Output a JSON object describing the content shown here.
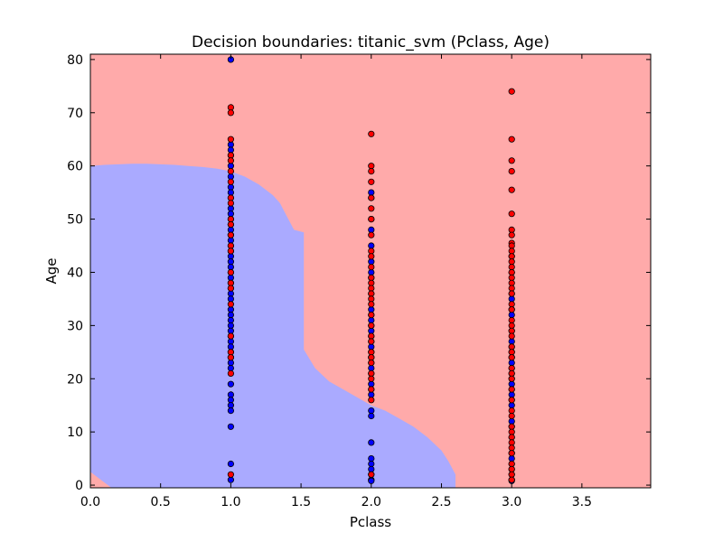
{
  "chart_data": {
    "type": "scatter",
    "title": "Decision boundaries: titanic_svm (Pclass, Age)",
    "xlabel": "Pclass",
    "ylabel": "Age",
    "xlim": [
      0.0,
      3.99
    ],
    "ylim": [
      -0.5,
      81
    ],
    "x_ticks": [
      0.0,
      0.5,
      1.0,
      1.5,
      2.0,
      2.5,
      3.0,
      3.5
    ],
    "x_tick_labels": [
      "0.0",
      "0.5",
      "1.0",
      "1.5",
      "2.0",
      "2.5",
      "3.0",
      "3.5"
    ],
    "y_ticks": [
      0,
      10,
      20,
      30,
      40,
      50,
      60,
      70,
      80
    ],
    "y_tick_labels": [
      "0",
      "10",
      "20",
      "30",
      "40",
      "50",
      "60",
      "70",
      "80"
    ],
    "grid": false,
    "legend": "none",
    "colors": {
      "region_blue": "#aaaaff",
      "region_red": "#ffaaaa",
      "point_blue": "#0000ff",
      "point_red": "#ff0000",
      "point_edge": "#000000"
    },
    "regions": {
      "blue_region_boundary": [
        [
          0.0,
          60.0
        ],
        [
          0.1,
          60.2
        ],
        [
          0.2,
          60.3
        ],
        [
          0.3,
          60.4
        ],
        [
          0.4,
          60.4
        ],
        [
          0.5,
          60.3
        ],
        [
          0.6,
          60.2
        ],
        [
          0.7,
          60.0
        ],
        [
          0.8,
          59.8
        ],
        [
          0.9,
          59.5
        ],
        [
          1.0,
          59.0
        ],
        [
          1.1,
          58.0
        ],
        [
          1.2,
          56.5
        ],
        [
          1.3,
          54.5
        ],
        [
          1.35,
          53.0
        ],
        [
          1.4,
          50.5
        ],
        [
          1.45,
          48.0
        ],
        [
          1.52,
          47.5
        ],
        [
          1.52,
          25.5
        ],
        [
          1.6,
          22.0
        ],
        [
          1.7,
          19.5
        ],
        [
          1.8,
          18.0
        ],
        [
          1.9,
          16.5
        ],
        [
          2.0,
          15.0
        ],
        [
          2.1,
          14.0
        ],
        [
          2.2,
          12.5
        ],
        [
          2.3,
          11.0
        ],
        [
          2.4,
          9.0
        ],
        [
          2.5,
          6.5
        ],
        [
          2.55,
          4.5
        ],
        [
          2.6,
          2.0
        ],
        [
          2.6,
          -0.5
        ]
      ],
      "red_corner_boundary": [
        [
          0.0,
          2.5
        ],
        [
          0.15,
          -0.5
        ]
      ]
    },
    "series": [
      {
        "color": "point_blue",
        "points": [
          [
            1,
            80
          ],
          [
            1,
            64
          ],
          [
            1,
            63
          ],
          [
            1,
            62
          ],
          [
            1,
            60
          ],
          [
            1,
            58
          ],
          [
            1,
            56
          ],
          [
            1,
            55
          ],
          [
            1,
            54
          ],
          [
            1,
            52
          ],
          [
            1,
            51
          ],
          [
            1,
            50
          ],
          [
            1,
            49
          ],
          [
            1,
            48
          ],
          [
            1,
            47
          ],
          [
            1,
            46
          ],
          [
            1,
            45
          ],
          [
            1,
            44
          ],
          [
            1,
            43
          ],
          [
            1,
            42
          ],
          [
            1,
            41
          ],
          [
            1,
            40
          ],
          [
            1,
            39
          ],
          [
            1,
            38
          ],
          [
            1,
            37
          ],
          [
            1,
            36
          ],
          [
            1,
            35
          ],
          [
            1,
            33
          ],
          [
            1,
            32
          ],
          [
            1,
            31
          ],
          [
            1,
            30
          ],
          [
            1,
            29
          ],
          [
            1,
            28
          ],
          [
            1,
            27
          ],
          [
            1,
            26
          ],
          [
            1,
            25
          ],
          [
            1,
            24
          ],
          [
            1,
            23
          ],
          [
            1,
            22
          ],
          [
            1,
            19
          ],
          [
            1,
            17
          ],
          [
            1,
            16
          ],
          [
            1,
            15
          ],
          [
            1,
            14
          ],
          [
            1,
            11
          ],
          [
            1,
            4
          ],
          [
            1,
            1
          ],
          [
            2,
            55
          ],
          [
            2,
            54
          ],
          [
            2,
            50
          ],
          [
            2,
            48
          ],
          [
            2,
            45
          ],
          [
            2,
            42
          ],
          [
            2,
            40
          ],
          [
            2,
            39
          ],
          [
            2,
            36
          ],
          [
            2,
            33
          ],
          [
            2,
            32
          ],
          [
            2,
            31
          ],
          [
            2,
            30
          ],
          [
            2,
            29
          ],
          [
            2,
            28
          ],
          [
            2,
            27
          ],
          [
            2,
            26
          ],
          [
            2,
            25
          ],
          [
            2,
            24
          ],
          [
            2,
            23
          ],
          [
            2,
            22
          ],
          [
            2,
            21
          ],
          [
            2,
            19
          ],
          [
            2,
            18
          ],
          [
            2,
            17
          ],
          [
            2,
            14
          ],
          [
            2,
            13
          ],
          [
            2,
            8
          ],
          [
            2,
            5
          ],
          [
            2,
            4
          ],
          [
            2,
            3
          ],
          [
            2,
            2
          ],
          [
            2,
            1
          ],
          [
            2,
            0.8
          ],
          [
            3,
            43
          ],
          [
            3,
            40
          ],
          [
            3,
            36
          ],
          [
            3,
            35
          ],
          [
            3,
            33
          ],
          [
            3,
            32
          ],
          [
            3,
            29
          ],
          [
            3,
            27
          ],
          [
            3,
            26
          ],
          [
            3,
            25
          ],
          [
            3,
            24
          ],
          [
            3,
            23
          ],
          [
            3,
            22
          ],
          [
            3,
            21
          ],
          [
            3,
            20
          ],
          [
            3,
            19
          ],
          [
            3,
            18
          ],
          [
            3,
            17
          ],
          [
            3,
            16
          ],
          [
            3,
            15
          ],
          [
            3,
            12
          ],
          [
            3,
            11
          ],
          [
            3,
            9
          ],
          [
            3,
            6
          ],
          [
            3,
            5
          ],
          [
            3,
            4
          ],
          [
            3,
            3
          ],
          [
            3,
            2
          ],
          [
            3,
            1
          ],
          [
            3,
            0.8
          ]
        ]
      },
      {
        "color": "point_red",
        "points": [
          [
            1,
            71
          ],
          [
            1,
            70
          ],
          [
            1,
            65
          ],
          [
            1,
            62
          ],
          [
            1,
            61
          ],
          [
            1,
            59
          ],
          [
            1,
            57
          ],
          [
            1,
            54
          ],
          [
            1,
            53
          ],
          [
            1,
            50
          ],
          [
            1,
            49
          ],
          [
            1,
            47
          ],
          [
            1,
            45
          ],
          [
            1,
            44
          ],
          [
            1,
            40
          ],
          [
            1,
            38
          ],
          [
            1,
            37
          ],
          [
            1,
            34
          ],
          [
            1,
            28
          ],
          [
            1,
            25
          ],
          [
            1,
            24
          ],
          [
            1,
            21
          ],
          [
            1,
            2
          ],
          [
            2,
            66
          ],
          [
            2,
            60
          ],
          [
            2,
            59
          ],
          [
            2,
            57
          ],
          [
            2,
            54
          ],
          [
            2,
            52
          ],
          [
            2,
            50
          ],
          [
            2,
            47
          ],
          [
            2,
            44
          ],
          [
            2,
            43
          ],
          [
            2,
            41
          ],
          [
            2,
            39
          ],
          [
            2,
            38
          ],
          [
            2,
            37
          ],
          [
            2,
            36
          ],
          [
            2,
            35
          ],
          [
            2,
            34
          ],
          [
            2,
            32
          ],
          [
            2,
            30
          ],
          [
            2,
            28
          ],
          [
            2,
            27
          ],
          [
            2,
            25
          ],
          [
            2,
            24
          ],
          [
            2,
            23
          ],
          [
            2,
            21
          ],
          [
            2,
            20
          ],
          [
            2,
            18
          ],
          [
            2,
            16
          ],
          [
            2,
            2
          ],
          [
            3,
            74
          ],
          [
            3,
            65
          ],
          [
            3,
            61
          ],
          [
            3,
            59
          ],
          [
            3,
            55.5
          ],
          [
            3,
            51
          ],
          [
            3,
            48
          ],
          [
            3,
            47
          ],
          [
            3,
            45.5
          ],
          [
            3,
            45
          ],
          [
            3,
            44
          ],
          [
            3,
            43
          ],
          [
            3,
            42
          ],
          [
            3,
            41
          ],
          [
            3,
            40
          ],
          [
            3,
            39
          ],
          [
            3,
            38
          ],
          [
            3,
            37
          ],
          [
            3,
            36
          ],
          [
            3,
            34
          ],
          [
            3,
            33
          ],
          [
            3,
            31
          ],
          [
            3,
            30
          ],
          [
            3,
            29
          ],
          [
            3,
            28
          ],
          [
            3,
            26
          ],
          [
            3,
            25
          ],
          [
            3,
            24
          ],
          [
            3,
            22
          ],
          [
            3,
            21
          ],
          [
            3,
            20
          ],
          [
            3,
            18
          ],
          [
            3,
            16
          ],
          [
            3,
            14
          ],
          [
            3,
            13
          ],
          [
            3,
            11
          ],
          [
            3,
            10
          ],
          [
            3,
            9
          ],
          [
            3,
            8
          ],
          [
            3,
            7
          ],
          [
            3,
            6
          ],
          [
            3,
            4
          ],
          [
            3,
            3
          ],
          [
            3,
            2
          ],
          [
            3,
            1
          ]
        ]
      }
    ]
  }
}
